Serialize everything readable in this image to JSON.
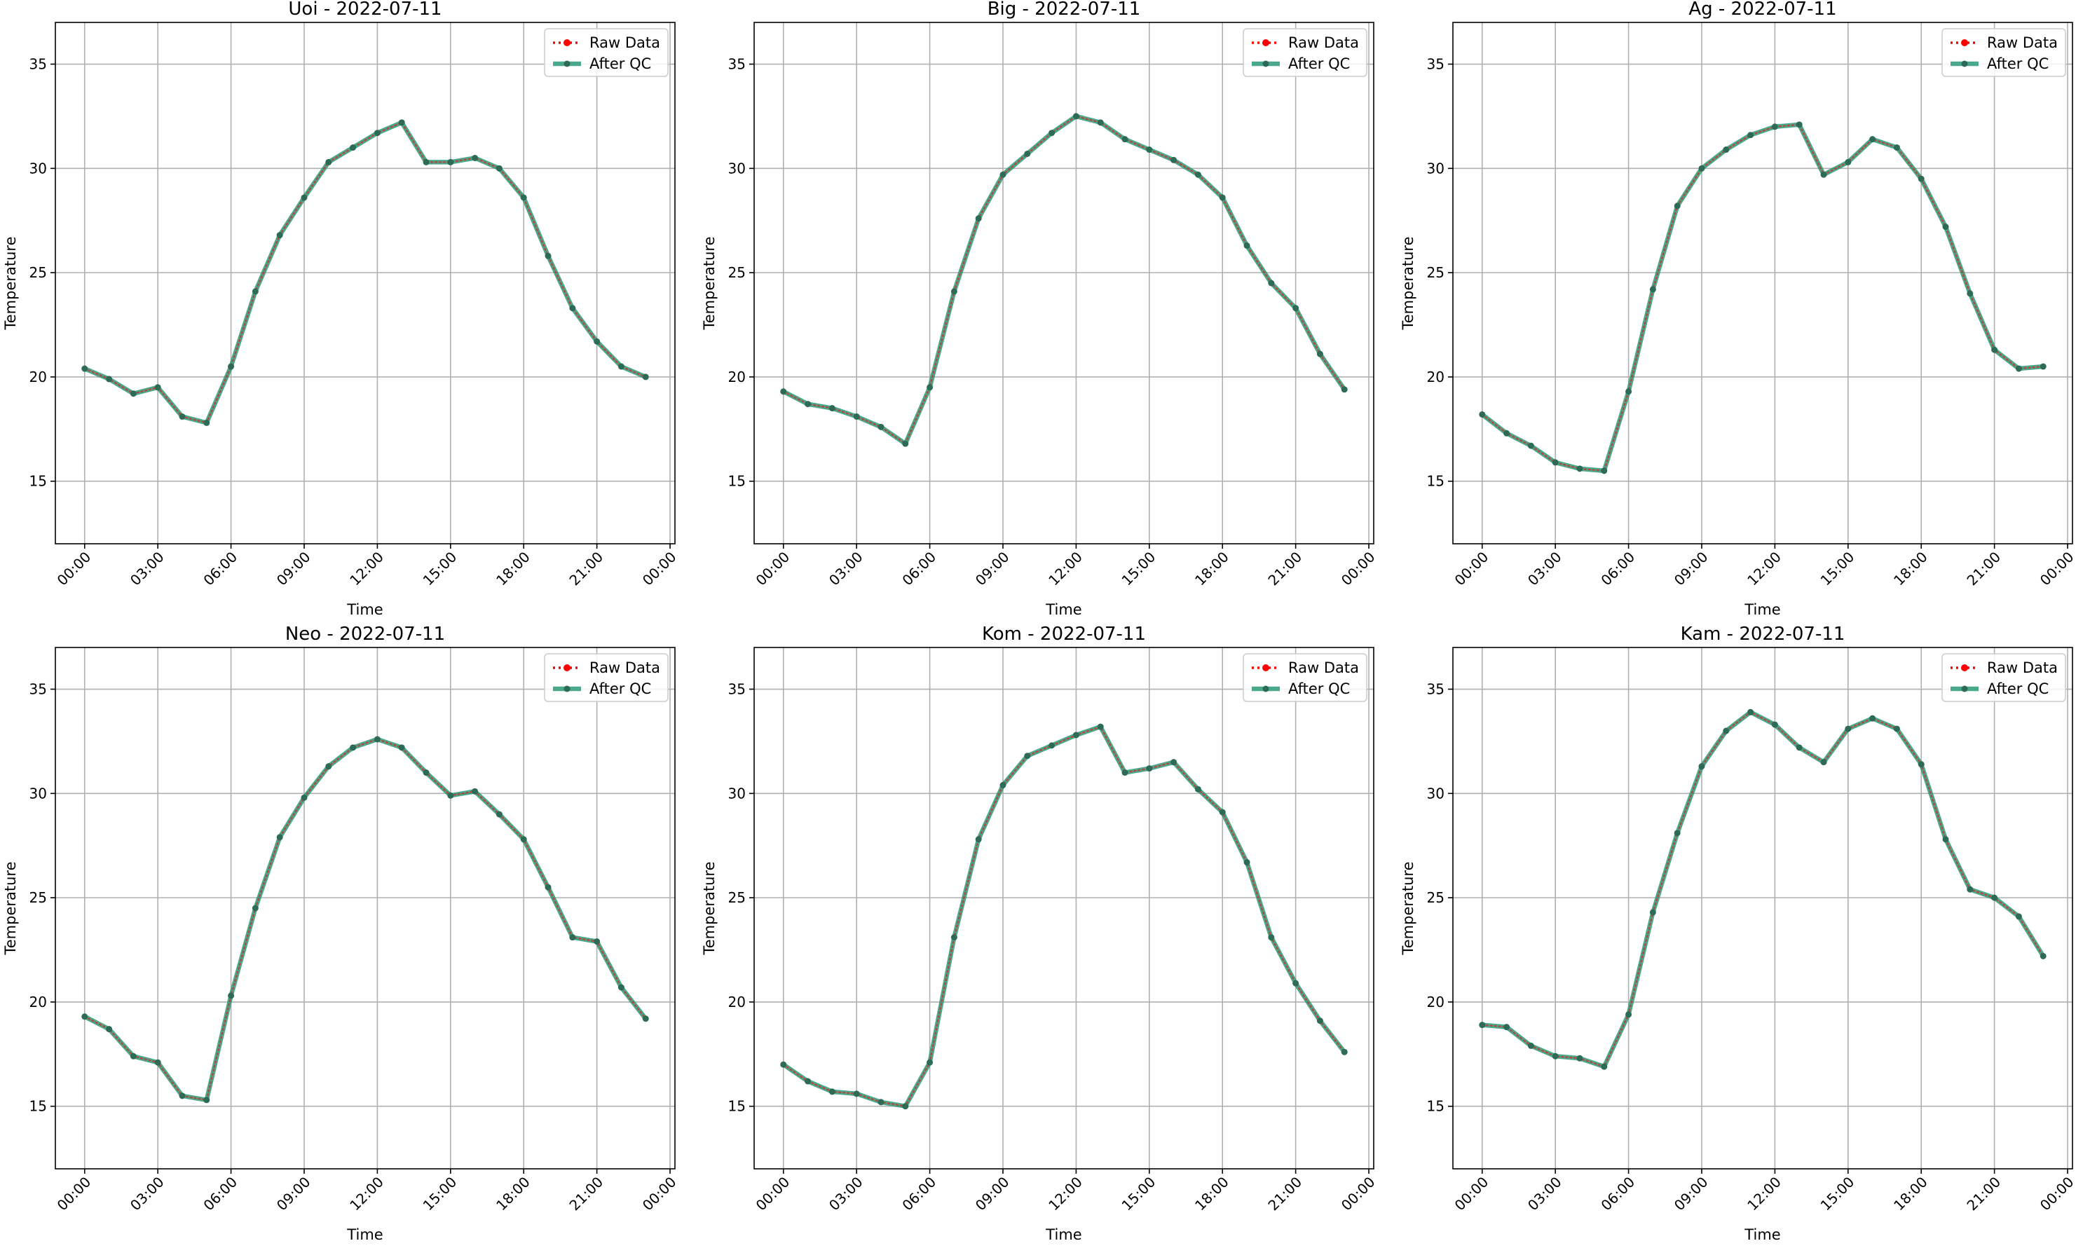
{
  "figure": {
    "raw_color": "#ff0000",
    "qc_color": "#2a9a78",
    "point_color": "#2e6b57",
    "grid_color": "#b0b0b0"
  },
  "chart_data": [
    {
      "type": "line",
      "title": "Uoi - 2022-07-11",
      "xlabel": "Time",
      "ylabel": "Temperature",
      "x_ticks": [
        "00:00",
        "03:00",
        "06:00",
        "09:00",
        "12:00",
        "15:00",
        "18:00",
        "21:00",
        "00:00"
      ],
      "y_ticks": [
        15,
        20,
        25,
        30,
        35
      ],
      "xlim_hours": [
        -1.2,
        24.2
      ],
      "ylim": [
        12,
        37
      ],
      "grid": true,
      "legend": "top-right",
      "series": [
        {
          "name": "Raw Data",
          "style": "dotted",
          "hours": [
            0,
            1,
            2,
            3,
            4,
            5,
            6,
            7,
            8,
            9,
            10,
            11,
            12,
            13,
            14,
            15,
            16,
            17,
            18,
            19,
            20,
            21,
            22,
            23
          ],
          "values": [
            20.4,
            19.9,
            19.2,
            19.5,
            18.1,
            17.8,
            20.5,
            24.1,
            26.8,
            28.6,
            30.3,
            31.0,
            31.7,
            32.2,
            30.3,
            30.3,
            30.5,
            30.0,
            28.6,
            25.8,
            23.3,
            21.7,
            20.5,
            20.0
          ]
        },
        {
          "name": "After QC",
          "style": "solid",
          "hours": [
            0,
            1,
            2,
            3,
            4,
            5,
            6,
            7,
            8,
            9,
            10,
            11,
            12,
            13,
            14,
            15,
            16,
            17,
            18,
            19,
            20,
            21,
            22,
            23
          ],
          "values": [
            20.4,
            19.9,
            19.2,
            19.5,
            18.1,
            17.8,
            20.5,
            24.1,
            26.8,
            28.6,
            30.3,
            31.0,
            31.7,
            32.2,
            30.3,
            30.3,
            30.5,
            30.0,
            28.6,
            25.8,
            23.3,
            21.7,
            20.5,
            20.0
          ]
        }
      ]
    },
    {
      "type": "line",
      "title": "Big - 2022-07-11",
      "xlabel": "Time",
      "ylabel": "Temperature",
      "x_ticks": [
        "00:00",
        "03:00",
        "06:00",
        "09:00",
        "12:00",
        "15:00",
        "18:00",
        "21:00",
        "00:00"
      ],
      "y_ticks": [
        15,
        20,
        25,
        30,
        35
      ],
      "xlim_hours": [
        -1.2,
        24.2
      ],
      "ylim": [
        12,
        37
      ],
      "grid": true,
      "legend": "top-right",
      "series": [
        {
          "name": "Raw Data",
          "style": "dotted",
          "hours": [
            0,
            1,
            2,
            3,
            4,
            5,
            6,
            7,
            8,
            9,
            10,
            11,
            12,
            13,
            14,
            15,
            16,
            17,
            18,
            19,
            20,
            21,
            22,
            23
          ],
          "values": [
            19.3,
            18.7,
            18.5,
            18.1,
            17.6,
            16.8,
            19.5,
            24.1,
            27.6,
            29.7,
            30.7,
            31.7,
            32.5,
            32.2,
            31.4,
            30.9,
            30.4,
            29.7,
            28.6,
            26.3,
            24.5,
            23.3,
            21.1,
            19.4
          ]
        },
        {
          "name": "After QC",
          "style": "solid",
          "hours": [
            0,
            1,
            2,
            3,
            4,
            5,
            6,
            7,
            8,
            9,
            10,
            11,
            12,
            13,
            14,
            15,
            16,
            17,
            18,
            19,
            20,
            21,
            22,
            23
          ],
          "values": [
            19.3,
            18.7,
            18.5,
            18.1,
            17.6,
            16.8,
            19.5,
            24.1,
            27.6,
            29.7,
            30.7,
            31.7,
            32.5,
            32.2,
            31.4,
            30.9,
            30.4,
            29.7,
            28.6,
            26.3,
            24.5,
            23.3,
            21.1,
            19.4
          ]
        }
      ]
    },
    {
      "type": "line",
      "title": "Ag - 2022-07-11",
      "xlabel": "Time",
      "ylabel": "Temperature",
      "x_ticks": [
        "00:00",
        "03:00",
        "06:00",
        "09:00",
        "12:00",
        "15:00",
        "18:00",
        "21:00",
        "00:00"
      ],
      "y_ticks": [
        15,
        20,
        25,
        30,
        35
      ],
      "xlim_hours": [
        -1.2,
        24.2
      ],
      "ylim": [
        12,
        37
      ],
      "grid": true,
      "legend": "top-right",
      "series": [
        {
          "name": "Raw Data",
          "style": "dotted",
          "hours": [
            0,
            1,
            2,
            3,
            4,
            5,
            6,
            7,
            8,
            9,
            10,
            11,
            12,
            13,
            14,
            15,
            16,
            17,
            18,
            19,
            20,
            21,
            22,
            23
          ],
          "values": [
            18.2,
            17.3,
            16.7,
            15.9,
            15.6,
            15.5,
            19.3,
            24.2,
            28.2,
            30.0,
            30.9,
            31.6,
            32.0,
            32.1,
            29.7,
            30.3,
            31.4,
            31.0,
            29.5,
            27.2,
            24.0,
            21.3,
            20.4,
            20.5
          ]
        },
        {
          "name": "After QC",
          "style": "solid",
          "hours": [
            0,
            1,
            2,
            3,
            4,
            5,
            6,
            7,
            8,
            9,
            10,
            11,
            12,
            13,
            14,
            15,
            16,
            17,
            18,
            19,
            20,
            21,
            22,
            23
          ],
          "values": [
            18.2,
            17.3,
            16.7,
            15.9,
            15.6,
            15.5,
            19.3,
            24.2,
            28.2,
            30.0,
            30.9,
            31.6,
            32.0,
            32.1,
            29.7,
            30.3,
            31.4,
            31.0,
            29.5,
            27.2,
            24.0,
            21.3,
            20.4,
            20.5
          ]
        }
      ]
    },
    {
      "type": "line",
      "title": "Neo - 2022-07-11",
      "xlabel": "Time",
      "ylabel": "Temperature",
      "x_ticks": [
        "00:00",
        "03:00",
        "06:00",
        "09:00",
        "12:00",
        "15:00",
        "18:00",
        "21:00",
        "00:00"
      ],
      "y_ticks": [
        15,
        20,
        25,
        30,
        35
      ],
      "xlim_hours": [
        -1.2,
        24.2
      ],
      "ylim": [
        12,
        37
      ],
      "grid": true,
      "legend": "top-right",
      "series": [
        {
          "name": "Raw Data",
          "style": "dotted",
          "hours": [
            0,
            1,
            2,
            3,
            4,
            5,
            6,
            7,
            8,
            9,
            10,
            11,
            12,
            13,
            14,
            15,
            16,
            17,
            18,
            19,
            20,
            21,
            22,
            23
          ],
          "values": [
            19.3,
            18.7,
            17.4,
            17.1,
            15.5,
            15.3,
            20.3,
            24.5,
            27.9,
            29.8,
            31.3,
            32.2,
            32.6,
            32.2,
            31.0,
            29.9,
            30.1,
            29.0,
            27.8,
            25.5,
            23.1,
            22.9,
            20.7,
            19.2
          ]
        },
        {
          "name": "After QC",
          "style": "solid",
          "hours": [
            0,
            1,
            2,
            3,
            4,
            5,
            6,
            7,
            8,
            9,
            10,
            11,
            12,
            13,
            14,
            15,
            16,
            17,
            18,
            19,
            20,
            21,
            22,
            23
          ],
          "values": [
            19.3,
            18.7,
            17.4,
            17.1,
            15.5,
            15.3,
            20.3,
            24.5,
            27.9,
            29.8,
            31.3,
            32.2,
            32.6,
            32.2,
            31.0,
            29.9,
            30.1,
            29.0,
            27.8,
            25.5,
            23.1,
            22.9,
            20.7,
            19.2
          ]
        }
      ]
    },
    {
      "type": "line",
      "title": "Kom - 2022-07-11",
      "xlabel": "Time",
      "ylabel": "Temperature",
      "x_ticks": [
        "00:00",
        "03:00",
        "06:00",
        "09:00",
        "12:00",
        "15:00",
        "18:00",
        "21:00",
        "00:00"
      ],
      "y_ticks": [
        15,
        20,
        25,
        30,
        35
      ],
      "xlim_hours": [
        -1.2,
        24.2
      ],
      "ylim": [
        12,
        37
      ],
      "grid": true,
      "legend": "top-right",
      "series": [
        {
          "name": "Raw Data",
          "style": "dotted",
          "hours": [
            0,
            1,
            2,
            3,
            4,
            5,
            6,
            7,
            8,
            9,
            10,
            11,
            12,
            13,
            14,
            15,
            16,
            17,
            18,
            19,
            20,
            21,
            22,
            23
          ],
          "values": [
            17.0,
            16.2,
            15.7,
            15.6,
            15.2,
            15.0,
            17.1,
            23.1,
            27.8,
            30.4,
            31.8,
            32.3,
            32.8,
            33.2,
            31.0,
            31.2,
            31.5,
            30.2,
            29.1,
            26.7,
            23.1,
            20.9,
            19.1,
            17.6
          ]
        },
        {
          "name": "After QC",
          "style": "solid",
          "hours": [
            0,
            1,
            2,
            3,
            4,
            5,
            6,
            7,
            8,
            9,
            10,
            11,
            12,
            13,
            14,
            15,
            16,
            17,
            18,
            19,
            20,
            21,
            22,
            23
          ],
          "values": [
            17.0,
            16.2,
            15.7,
            15.6,
            15.2,
            15.0,
            17.1,
            23.1,
            27.8,
            30.4,
            31.8,
            32.3,
            32.8,
            33.2,
            31.0,
            31.2,
            31.5,
            30.2,
            29.1,
            26.7,
            23.1,
            20.9,
            19.1,
            17.6
          ]
        }
      ]
    },
    {
      "type": "line",
      "title": "Kam - 2022-07-11",
      "xlabel": "Time",
      "ylabel": "Temperature",
      "x_ticks": [
        "00:00",
        "03:00",
        "06:00",
        "09:00",
        "12:00",
        "15:00",
        "18:00",
        "21:00",
        "00:00"
      ],
      "y_ticks": [
        15,
        20,
        25,
        30,
        35
      ],
      "xlim_hours": [
        -1.2,
        24.2
      ],
      "ylim": [
        12,
        37
      ],
      "grid": true,
      "legend": "top-right",
      "series": [
        {
          "name": "Raw Data",
          "style": "dotted",
          "hours": [
            0,
            1,
            2,
            3,
            4,
            5,
            6,
            7,
            8,
            9,
            10,
            11,
            12,
            13,
            14,
            15,
            16,
            17,
            18,
            19,
            20,
            21,
            22,
            23
          ],
          "values": [
            18.9,
            18.8,
            17.9,
            17.4,
            17.3,
            16.9,
            19.4,
            24.3,
            28.1,
            31.3,
            33.0,
            33.9,
            33.3,
            32.2,
            31.5,
            33.1,
            33.6,
            33.1,
            31.4,
            27.8,
            25.4,
            25.0,
            24.1,
            22.2
          ]
        },
        {
          "name": "After QC",
          "style": "solid",
          "hours": [
            0,
            1,
            2,
            3,
            4,
            5,
            6,
            7,
            8,
            9,
            10,
            11,
            12,
            13,
            14,
            15,
            16,
            17,
            18,
            19,
            20,
            21,
            22,
            23
          ],
          "values": [
            18.9,
            18.8,
            17.9,
            17.4,
            17.3,
            16.9,
            19.4,
            24.3,
            28.1,
            31.3,
            33.0,
            33.9,
            33.3,
            32.2,
            31.5,
            33.1,
            33.6,
            33.1,
            31.4,
            27.8,
            25.4,
            25.0,
            24.1,
            22.2
          ]
        }
      ]
    }
  ]
}
